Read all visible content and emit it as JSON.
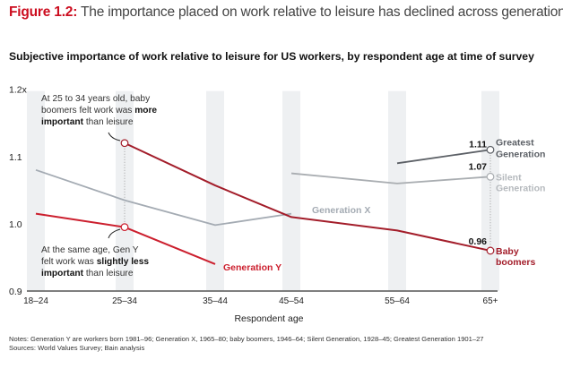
{
  "header": {
    "figure_number": "Figure 1.2:",
    "figure_title": " The importance placed on work relative to leisure has declined across generations"
  },
  "chart_data": {
    "type": "line",
    "title": "Subjective importance of work relative to leisure for US workers, by respondent age at time of survey",
    "xlabel": "Respondent age",
    "ylabel": "",
    "categories": [
      "18–24",
      "25–34",
      "35–44",
      "45–54",
      "55–64",
      "65+"
    ],
    "yticks": [
      {
        "value": 1.2,
        "label": "1.2x"
      },
      {
        "value": 1.1,
        "label": "1.1"
      },
      {
        "value": 1.0,
        "label": "1.0"
      },
      {
        "value": 0.9,
        "label": "0.9"
      }
    ],
    "ylim": [
      0.9,
      1.2
    ],
    "grid": false,
    "series": [
      {
        "name": "Generation Y",
        "color": "#cc1f2e",
        "values": [
          1.015,
          0.995,
          0.94,
          null,
          null,
          null
        ]
      },
      {
        "name": "Generation X",
        "color": "#a4abb3",
        "values": [
          1.08,
          1.035,
          0.998,
          1.015,
          null,
          null
        ]
      },
      {
        "name": "Baby boomers",
        "color": "#a31d2a",
        "values": [
          null,
          1.12,
          1.057,
          1.01,
          0.99,
          0.96
        ]
      },
      {
        "name": "Silent Generation",
        "color": "#a9adb1",
        "values": [
          null,
          null,
          null,
          1.075,
          1.06,
          1.07
        ]
      },
      {
        "name": "Greatest Generation",
        "color": "#5c6066",
        "values": [
          null,
          null,
          null,
          null,
          1.09,
          1.11
        ]
      }
    ],
    "end_labels": {
      "greatest": {
        "value": "1.11",
        "line1": "Greatest",
        "line2": "Generation"
      },
      "silent": {
        "value": "1.07",
        "line1": "Silent",
        "line2": "Generation"
      },
      "boomers": {
        "value": "0.96",
        "line1": "Baby",
        "line2": "boomers"
      }
    },
    "inline_labels": {
      "gen_x": "Generation X",
      "gen_y": "Generation Y"
    },
    "annotations": {
      "top": {
        "line1": "At 25 to 34 years old, baby",
        "line2_pre": "boomers felt work was ",
        "line2_bold": "more",
        "line3_bold": "important",
        "line3_post": " than leisure"
      },
      "bottom": {
        "line1": "At the same age, Gen Y",
        "line2_pre": "felt work was ",
        "line2_bold": "slightly less",
        "line3_bold": "important",
        "line3_post": " than leisure"
      }
    }
  },
  "footer": {
    "notes": "Notes: Generation Y are workers born 1981–96; Generation X, 1965–80; baby boomers, 1946–64; Silent Generation, 1928–45; Greatest Generation 1901–27",
    "sources": "Sources: World Values Survey; Bain analysis"
  }
}
